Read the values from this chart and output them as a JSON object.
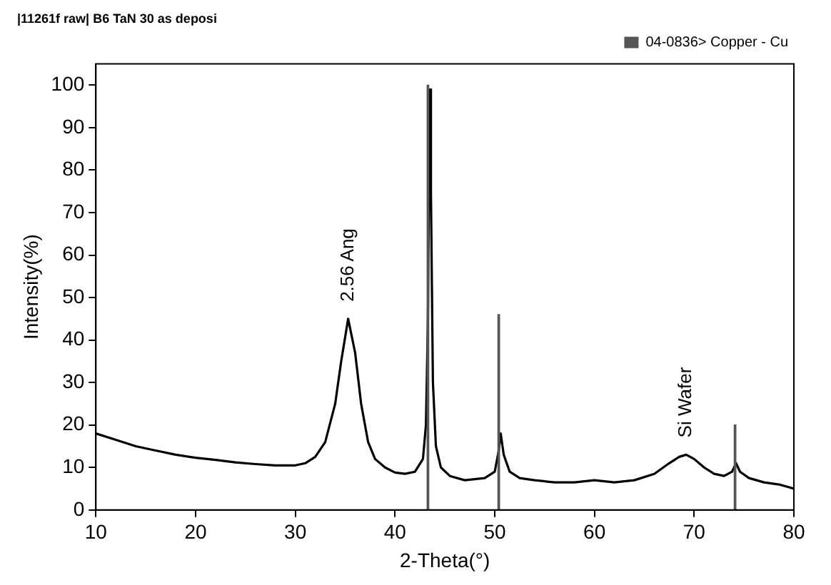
{
  "chart_data": {
    "type": "line",
    "title": "|11261f raw| B6 TaN 30 as deposi",
    "xlabel": "2-Theta(°)",
    "ylabel": "Intensity(%)",
    "xlim": [
      10,
      80
    ],
    "xticks": [
      10,
      20,
      30,
      40,
      50,
      60,
      70,
      80
    ],
    "ylim": [
      0,
      105
    ],
    "yticks": [
      0,
      10,
      20,
      30,
      40,
      50,
      60,
      70,
      80,
      90,
      100
    ],
    "grid": false,
    "legend": "top right",
    "marker": "none",
    "line_style": "solid",
    "series": [
      {
        "color": "#000000",
        "x": [
          10,
          12,
          14,
          16,
          18,
          20,
          22,
          24,
          26,
          28,
          30,
          31,
          32,
          33,
          34,
          34.6,
          35.3,
          36,
          36.6,
          37.3,
          38,
          39,
          40,
          41,
          42,
          42.8,
          43.1,
          43.3,
          43.4,
          43.5,
          43.6,
          43.8,
          44.1,
          44.6,
          45.5,
          47,
          49,
          50,
          50.4,
          50.6,
          50.9,
          51.5,
          52.5,
          54,
          56,
          58,
          60,
          62,
          64,
          66,
          67.5,
          68.5,
          69.2,
          70,
          71,
          72,
          73,
          73.8,
          74.2,
          74.6,
          75.5,
          77,
          78.5,
          80
        ],
        "values": [
          18,
          16.5,
          15,
          14,
          13,
          12.3,
          11.8,
          11.2,
          10.8,
          10.5,
          10.5,
          11,
          12.5,
          16,
          25,
          35,
          45,
          37,
          25,
          16,
          12,
          10,
          8.8,
          8.5,
          9,
          12,
          20,
          45,
          75,
          99,
          75,
          30,
          15,
          10,
          8,
          7,
          7.5,
          9,
          14,
          18,
          13,
          9,
          7.5,
          7,
          6.5,
          6.5,
          7,
          6.5,
          7,
          8.5,
          11,
          12.5,
          13,
          12,
          10,
          8.5,
          8,
          9,
          11,
          9,
          7.5,
          6.5,
          6,
          5
        ]
      },
      {
        "type": "bar",
        "name": "04-0836> Copper - Cu",
        "color": "#555555",
        "x": [
          43.3,
          50.4,
          74.1
        ],
        "values": [
          100,
          46,
          20
        ]
      }
    ],
    "annotations": [
      {
        "text": "2.56 Ang",
        "x": 35.3,
        "y": 45
      },
      {
        "text": "Si Wafer",
        "x": 69.2,
        "y": 13
      }
    ]
  }
}
